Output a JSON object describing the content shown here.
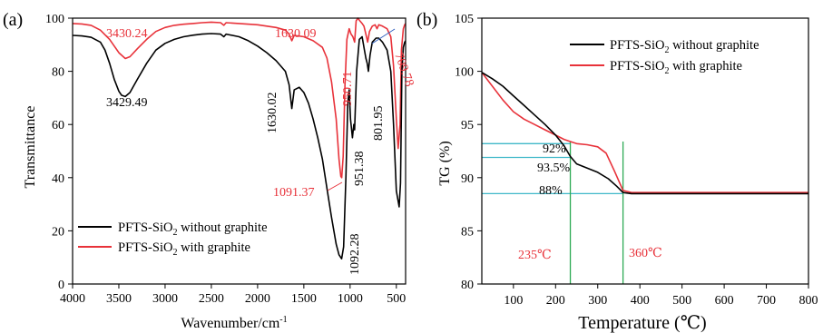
{
  "chart_data": [
    {
      "type": "line",
      "panel_label": "(a)",
      "xlabel": "Wavenumber/cm",
      "xlabel_sup": "-1",
      "ylabel": "Transmittance",
      "xlim": [
        4000,
        400
      ],
      "ylim": [
        0,
        100
      ],
      "x_ticks": [
        4000,
        3500,
        3000,
        2500,
        2000,
        1500,
        1000,
        500
      ],
      "y_ticks": [
        0,
        20,
        40,
        60,
        80,
        100
      ],
      "grid": false,
      "legend": "lower-left",
      "colors": {
        "without": "#000000",
        "with": "#e8323a"
      },
      "series": [
        {
          "name": "PFTS-SiO₂ without graphite",
          "legend_main": "PFTS-SiO",
          "legend_sub": "2",
          "legend_rest": " without graphite",
          "color": "#000000",
          "points": [
            [
              4000,
              93.5
            ],
            [
              3900,
              93.3
            ],
            [
              3800,
              92.8
            ],
            [
              3700,
              91
            ],
            [
              3650,
              88
            ],
            [
              3600,
              83
            ],
            [
              3550,
              77
            ],
            [
              3500,
              72.5
            ],
            [
              3470,
              71
            ],
            [
              3430,
              70.5
            ],
            [
              3380,
              72
            ],
            [
              3300,
              77
            ],
            [
              3200,
              83
            ],
            [
              3100,
              88
            ],
            [
              3000,
              90.5
            ],
            [
              2900,
              92
            ],
            [
              2800,
              93
            ],
            [
              2700,
              93.6
            ],
            [
              2600,
              94
            ],
            [
              2500,
              94.2
            ],
            [
              2400,
              94
            ],
            [
              2365,
              93
            ],
            [
              2340,
              94
            ],
            [
              2200,
              93
            ],
            [
              2100,
              91.5
            ],
            [
              2000,
              89.5
            ],
            [
              1900,
              87
            ],
            [
              1800,
              84
            ],
            [
              1700,
              80
            ],
            [
              1660,
              75
            ],
            [
              1630,
              66
            ],
            [
              1605,
              73
            ],
            [
              1550,
              74
            ],
            [
              1500,
              72
            ],
            [
              1450,
              68
            ],
            [
              1400,
              62
            ],
            [
              1350,
              55
            ],
            [
              1300,
              47
            ],
            [
              1250,
              36
            ],
            [
              1200,
              25
            ],
            [
              1150,
              15
            ],
            [
              1120,
              11
            ],
            [
              1092,
              9.5
            ],
            [
              1070,
              14
            ],
            [
              1045,
              40
            ],
            [
              1025,
              68
            ],
            [
              1010,
              73
            ],
            [
              995,
              62
            ],
            [
              975,
              55
            ],
            [
              960,
              60
            ],
            [
              951,
              58
            ],
            [
              930,
              80
            ],
            [
              900,
              92
            ],
            [
              870,
              93
            ],
            [
              850,
              89
            ],
            [
              830,
              85
            ],
            [
              815,
              83
            ],
            [
              802,
              80
            ],
            [
              785,
              86
            ],
            [
              760,
              91
            ],
            [
              720,
              92.5
            ],
            [
              690,
              92.5
            ],
            [
              650,
              91
            ],
            [
              600,
              88
            ],
            [
              560,
              80
            ],
            [
              530,
              60
            ],
            [
              500,
              35
            ],
            [
              470,
              29
            ],
            [
              455,
              38
            ],
            [
              440,
              80
            ],
            [
              425,
              89
            ],
            [
              410,
              91
            ],
            [
              400,
              91.5
            ]
          ]
        },
        {
          "name": "PFTS-SiO₂ with graphite",
          "legend_main": "PFTS-SiO",
          "legend_sub": "2",
          "legend_rest": " with graphite",
          "color": "#e8323a",
          "points": [
            [
              4000,
              98
            ],
            [
              3900,
              97.8
            ],
            [
              3800,
              97.3
            ],
            [
              3700,
              95.5
            ],
            [
              3600,
              92
            ],
            [
              3500,
              87
            ],
            [
              3430,
              84.8
            ],
            [
              3380,
              85.5
            ],
            [
              3300,
              88.5
            ],
            [
              3200,
              92
            ],
            [
              3100,
              95
            ],
            [
              3000,
              96.5
            ],
            [
              2900,
              97.3
            ],
            [
              2800,
              97.7
            ],
            [
              2700,
              98
            ],
            [
              2600,
              98.3
            ],
            [
              2500,
              98.5
            ],
            [
              2400,
              98.3
            ],
            [
              2365,
              97.3
            ],
            [
              2340,
              98.3
            ],
            [
              2200,
              98
            ],
            [
              2000,
              97.5
            ],
            [
              1800,
              96.5
            ],
            [
              1700,
              95.5
            ],
            [
              1660,
              94
            ],
            [
              1630,
              91.5
            ],
            [
              1605,
              93.5
            ],
            [
              1500,
              93
            ],
            [
              1400,
              91.5
            ],
            [
              1300,
              89
            ],
            [
              1250,
              85
            ],
            [
              1200,
              76
            ],
            [
              1150,
              62
            ],
            [
              1120,
              47
            ],
            [
              1100,
              40.5
            ],
            [
              1091,
              40
            ],
            [
              1075,
              48
            ],
            [
              1055,
              75
            ],
            [
              1035,
              92
            ],
            [
              1010,
              96
            ],
            [
              990,
              94
            ],
            [
              970,
              93
            ],
            [
              951,
              91
            ],
            [
              935,
              99
            ],
            [
              915,
              100
            ],
            [
              895,
              99
            ],
            [
              870,
              98
            ],
            [
              850,
              97
            ],
            [
              830,
              94
            ],
            [
              810,
              91
            ],
            [
              790,
              95
            ],
            [
              760,
              97
            ],
            [
              730,
              97.5
            ],
            [
              709,
              96
            ],
            [
              690,
              97.5
            ],
            [
              650,
              97
            ],
            [
              600,
              96
            ],
            [
              560,
              93
            ],
            [
              530,
              82
            ],
            [
              500,
              62
            ],
            [
              480,
              51
            ],
            [
              460,
              60
            ],
            [
              445,
              88
            ],
            [
              425,
              96
            ],
            [
              410,
              97.5
            ],
            [
              400,
              98
            ]
          ]
        }
      ],
      "annotations_without": [
        {
          "text": "3429.49",
          "x": 3429.49,
          "y": 70.5
        },
        {
          "text": "1630.02",
          "x": 1630.02,
          "y": 66
        },
        {
          "text": "1092.28",
          "x": 1092.28,
          "y": 9.5
        },
        {
          "text": "951.38",
          "x": 951.38,
          "y": 58
        },
        {
          "text": "801.95",
          "x": 801.95,
          "y": 80
        }
      ],
      "annotations_with": [
        {
          "text": "3430.24",
          "x": 3430.24,
          "y": 84.8
        },
        {
          "text": "1630.09",
          "x": 1630.09,
          "y": 91.5
        },
        {
          "text": "1091.37",
          "x": 1091.37,
          "y": 40
        },
        {
          "text": "950.71",
          "x": 950.71,
          "y": 91
        },
        {
          "text": "709.78",
          "x": 709.78,
          "y": 96
        }
      ]
    },
    {
      "type": "line",
      "panel_label": "(b)",
      "xlabel": "Temperature (℃)",
      "ylabel": "TG (%)",
      "xlim": [
        25,
        800
      ],
      "ylim": [
        80,
        105
      ],
      "x_ticks": [
        100,
        200,
        300,
        400,
        500,
        600,
        700,
        800
      ],
      "y_ticks": [
        80,
        85,
        90,
        95,
        100,
        105
      ],
      "grid": false,
      "legend": "top-right",
      "colors": {
        "without": "#000000",
        "with": "#e8323a",
        "guides_h": "#3fb8c9",
        "guides_v": "#2eaa55"
      },
      "series": [
        {
          "name": "PFTS-SiO₂ without graphite",
          "legend_main": "PFTS-SiO",
          "legend_sub": "2",
          "legend_rest": " without graphite",
          "color": "#000000",
          "points": [
            [
              25,
              99.9
            ],
            [
              50,
              99.3
            ],
            [
              75,
              98.6
            ],
            [
              100,
              97.7
            ],
            [
              125,
              96.8
            ],
            [
              150,
              95.9
            ],
            [
              175,
              95
            ],
            [
              200,
              94
            ],
            [
              220,
              93
            ],
            [
              235,
              92
            ],
            [
              250,
              91.3
            ],
            [
              275,
              90.9
            ],
            [
              300,
              90.5
            ],
            [
              325,
              89.9
            ],
            [
              345,
              89.2
            ],
            [
              360,
              88.6
            ],
            [
              380,
              88.5
            ],
            [
              800,
              88.5
            ]
          ]
        },
        {
          "name": "PFTS-SiO₂ with graphite",
          "legend_main": "PFTS-SiO",
          "legend_sub": "2",
          "legend_rest": " with graphite",
          "color": "#e8323a",
          "points": [
            [
              25,
              99.9
            ],
            [
              50,
              98.6
            ],
            [
              75,
              97.3
            ],
            [
              100,
              96.2
            ],
            [
              125,
              95.5
            ],
            [
              150,
              95
            ],
            [
              175,
              94.5
            ],
            [
              200,
              94
            ],
            [
              220,
              93.6
            ],
            [
              235,
              93.4
            ],
            [
              250,
              93.2
            ],
            [
              275,
              93.1
            ],
            [
              300,
              92.9
            ],
            [
              320,
              92.3
            ],
            [
              340,
              90.6
            ],
            [
              360,
              88.8
            ],
            [
              380,
              88.6
            ],
            [
              800,
              88.6
            ]
          ]
        }
      ],
      "guide_lines_h": [
        {
          "label": "93.5%",
          "y": 93.2,
          "x_end": 235
        },
        {
          "label": "92%",
          "y": 91.9,
          "x_end": 235
        },
        {
          "label": "88%",
          "y": 88.5,
          "x_end": 360
        }
      ],
      "guide_lines_v": [
        {
          "label": "235℃",
          "x": 235
        },
        {
          "label": "360℃",
          "x": 360
        }
      ]
    }
  ]
}
